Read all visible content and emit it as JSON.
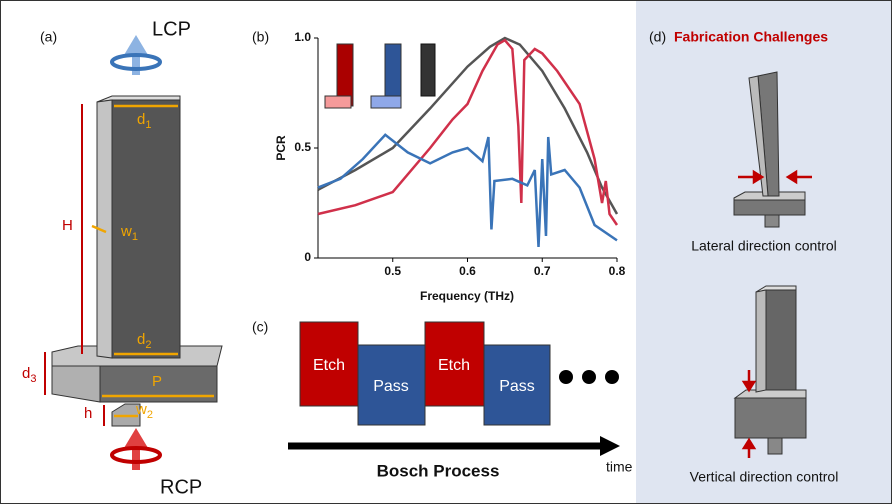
{
  "panel_a": {
    "label": "(a)",
    "top_label": "LCP",
    "bottom_label": "RCP",
    "dims": {
      "d1": {
        "text": "d",
        "sub": "1"
      },
      "d2": {
        "text": "d",
        "sub": "2"
      },
      "d3": {
        "text": "d",
        "sub": "3"
      },
      "w1": {
        "text": "w",
        "sub": "1"
      },
      "w2": {
        "text": "w",
        "sub": "2"
      },
      "H": "H",
      "P": "P",
      "h": "h"
    }
  },
  "chart_data": {
    "type": "line",
    "panel_label": "(b)",
    "x_label": "Frequency (THz)",
    "y_label": "PCR",
    "xlim": [
      0.4,
      0.8
    ],
    "ylim": [
      0,
      1
    ],
    "xticks": [
      0.5,
      0.6,
      0.7,
      0.8
    ],
    "yticks": [
      0,
      0.5,
      {
        "value": 1,
        "label": "1.0"
      }
    ],
    "series": [
      {
        "color": "#555555",
        "x": [
          0.4,
          0.45,
          0.5,
          0.55,
          0.6,
          0.63,
          0.65,
          0.67,
          0.7,
          0.73,
          0.76,
          0.78,
          0.8
        ],
        "values": [
          0.31,
          0.4,
          0.5,
          0.68,
          0.87,
          0.96,
          1.0,
          0.97,
          0.85,
          0.68,
          0.48,
          0.32,
          0.2
        ]
      },
      {
        "color": "#d0304a",
        "x": [
          0.4,
          0.45,
          0.5,
          0.55,
          0.58,
          0.6,
          0.62,
          0.64,
          0.65,
          0.66,
          0.668,
          0.672,
          0.676,
          0.69,
          0.7,
          0.72,
          0.75,
          0.77,
          0.78,
          0.785,
          0.79,
          0.8
        ],
        "values": [
          0.2,
          0.24,
          0.3,
          0.5,
          0.63,
          0.7,
          0.85,
          0.97,
          0.99,
          0.95,
          0.6,
          0.25,
          0.9,
          0.95,
          0.93,
          0.85,
          0.7,
          0.45,
          0.25,
          0.35,
          0.2,
          0.15
        ]
      },
      {
        "color": "#3a74b8",
        "x": [
          0.4,
          0.43,
          0.46,
          0.49,
          0.52,
          0.55,
          0.58,
          0.6,
          0.62,
          0.628,
          0.632,
          0.636,
          0.66,
          0.68,
          0.69,
          0.695,
          0.7,
          0.705,
          0.708,
          0.712,
          0.73,
          0.75,
          0.77,
          0.8
        ],
        "values": [
          0.32,
          0.36,
          0.45,
          0.56,
          0.48,
          0.43,
          0.48,
          0.5,
          0.44,
          0.55,
          0.13,
          0.35,
          0.36,
          0.33,
          0.4,
          0.05,
          0.45,
          0.1,
          0.55,
          0.38,
          0.4,
          0.32,
          0.15,
          0.08
        ]
      }
    ]
  },
  "panel_c": {
    "label": "(c)",
    "steps": [
      "Etch",
      "Pass",
      "Etch",
      "Pass"
    ],
    "process": "Bosch Process",
    "axis": "time"
  },
  "panel_d": {
    "label": "(d)",
    "title": "Fabrication Challenges",
    "captions": [
      "Lateral direction control",
      "Vertical direction control"
    ]
  }
}
